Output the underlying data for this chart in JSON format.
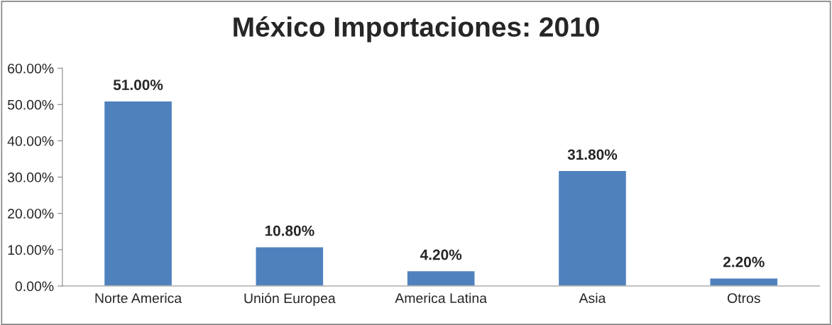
{
  "chart_data": {
    "type": "bar",
    "title": "México Importaciones: 2010",
    "categories": [
      "Norte America",
      "Unión Europea",
      "America Latina",
      "Asia",
      "Otros"
    ],
    "values": [
      51.0,
      10.8,
      4.2,
      31.8,
      2.2
    ],
    "value_labels": [
      "51.00%",
      "10.80%",
      "4.20%",
      "31.80%",
      "2.20%"
    ],
    "color": "#4f81bd",
    "ylim": [
      0,
      60
    ],
    "yticks": [
      {
        "value": 0,
        "label": "0.00%"
      },
      {
        "value": 10,
        "label": "10.00%"
      },
      {
        "value": 20,
        "label": "20.00%"
      },
      {
        "value": 30,
        "label": "30.00%"
      },
      {
        "value": 40,
        "label": "40.00%"
      },
      {
        "value": 50,
        "label": "50.00%"
      },
      {
        "value": 60,
        "label": "60.00%"
      }
    ],
    "grid": false,
    "legend": false
  }
}
